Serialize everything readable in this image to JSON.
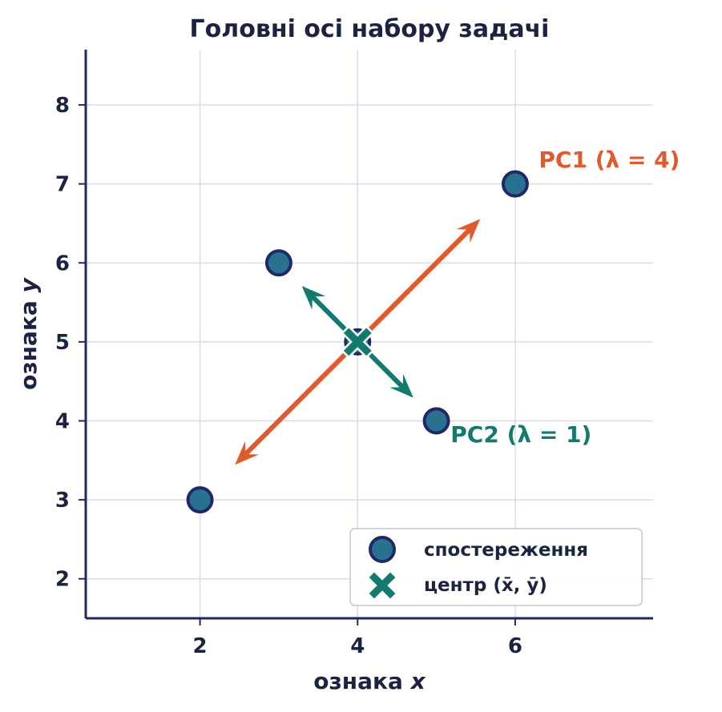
{
  "chart_data": {
    "type": "scatter",
    "title": "Головні осі набору задачі",
    "xlabel": "ознака x",
    "xlabel_main": "ознака ",
    "xlabel_var": "x",
    "ylabel": "ознака y",
    "ylabel_main": "ознака ",
    "ylabel_var": "y",
    "xlim": [
      0.55,
      7.75
    ],
    "ylim": [
      1.5,
      8.7
    ],
    "xticks": [
      2,
      4,
      6
    ],
    "yticks": [
      2,
      3,
      4,
      5,
      6,
      7,
      8
    ],
    "grid": true,
    "series": [
      {
        "name": "спостереження",
        "points": [
          [
            2,
            3
          ],
          [
            3,
            6
          ],
          [
            4,
            5
          ],
          [
            5,
            4
          ],
          [
            6,
            7
          ]
        ]
      },
      {
        "name": "центр (x̄, ȳ)",
        "points": [
          [
            4,
            5
          ]
        ]
      }
    ],
    "principal_axes": [
      {
        "label": "PC1 (λ = 4)",
        "from": [
          4,
          5
        ],
        "direction": [
          1,
          1
        ],
        "half_length": 2.2,
        "color": "#e05a30"
      },
      {
        "label": "PC2 (λ = 1)",
        "from": [
          4,
          5
        ],
        "direction": [
          1,
          -1
        ],
        "half_length": 1.0,
        "color": "#137a6e"
      }
    ],
    "legend": {
      "position": "bottom-right",
      "items": [
        {
          "label": "спостереження",
          "marker": "circle"
        },
        {
          "label": "центр (x̄, ȳ)",
          "marker": "x"
        }
      ]
    },
    "colors": {
      "point_fill": "#2a7190",
      "point_edge": "#1e2a66",
      "center": "#137a6e",
      "text": "#1c2340",
      "grid": "#d8dcea",
      "axis": "#1e2a66"
    }
  }
}
